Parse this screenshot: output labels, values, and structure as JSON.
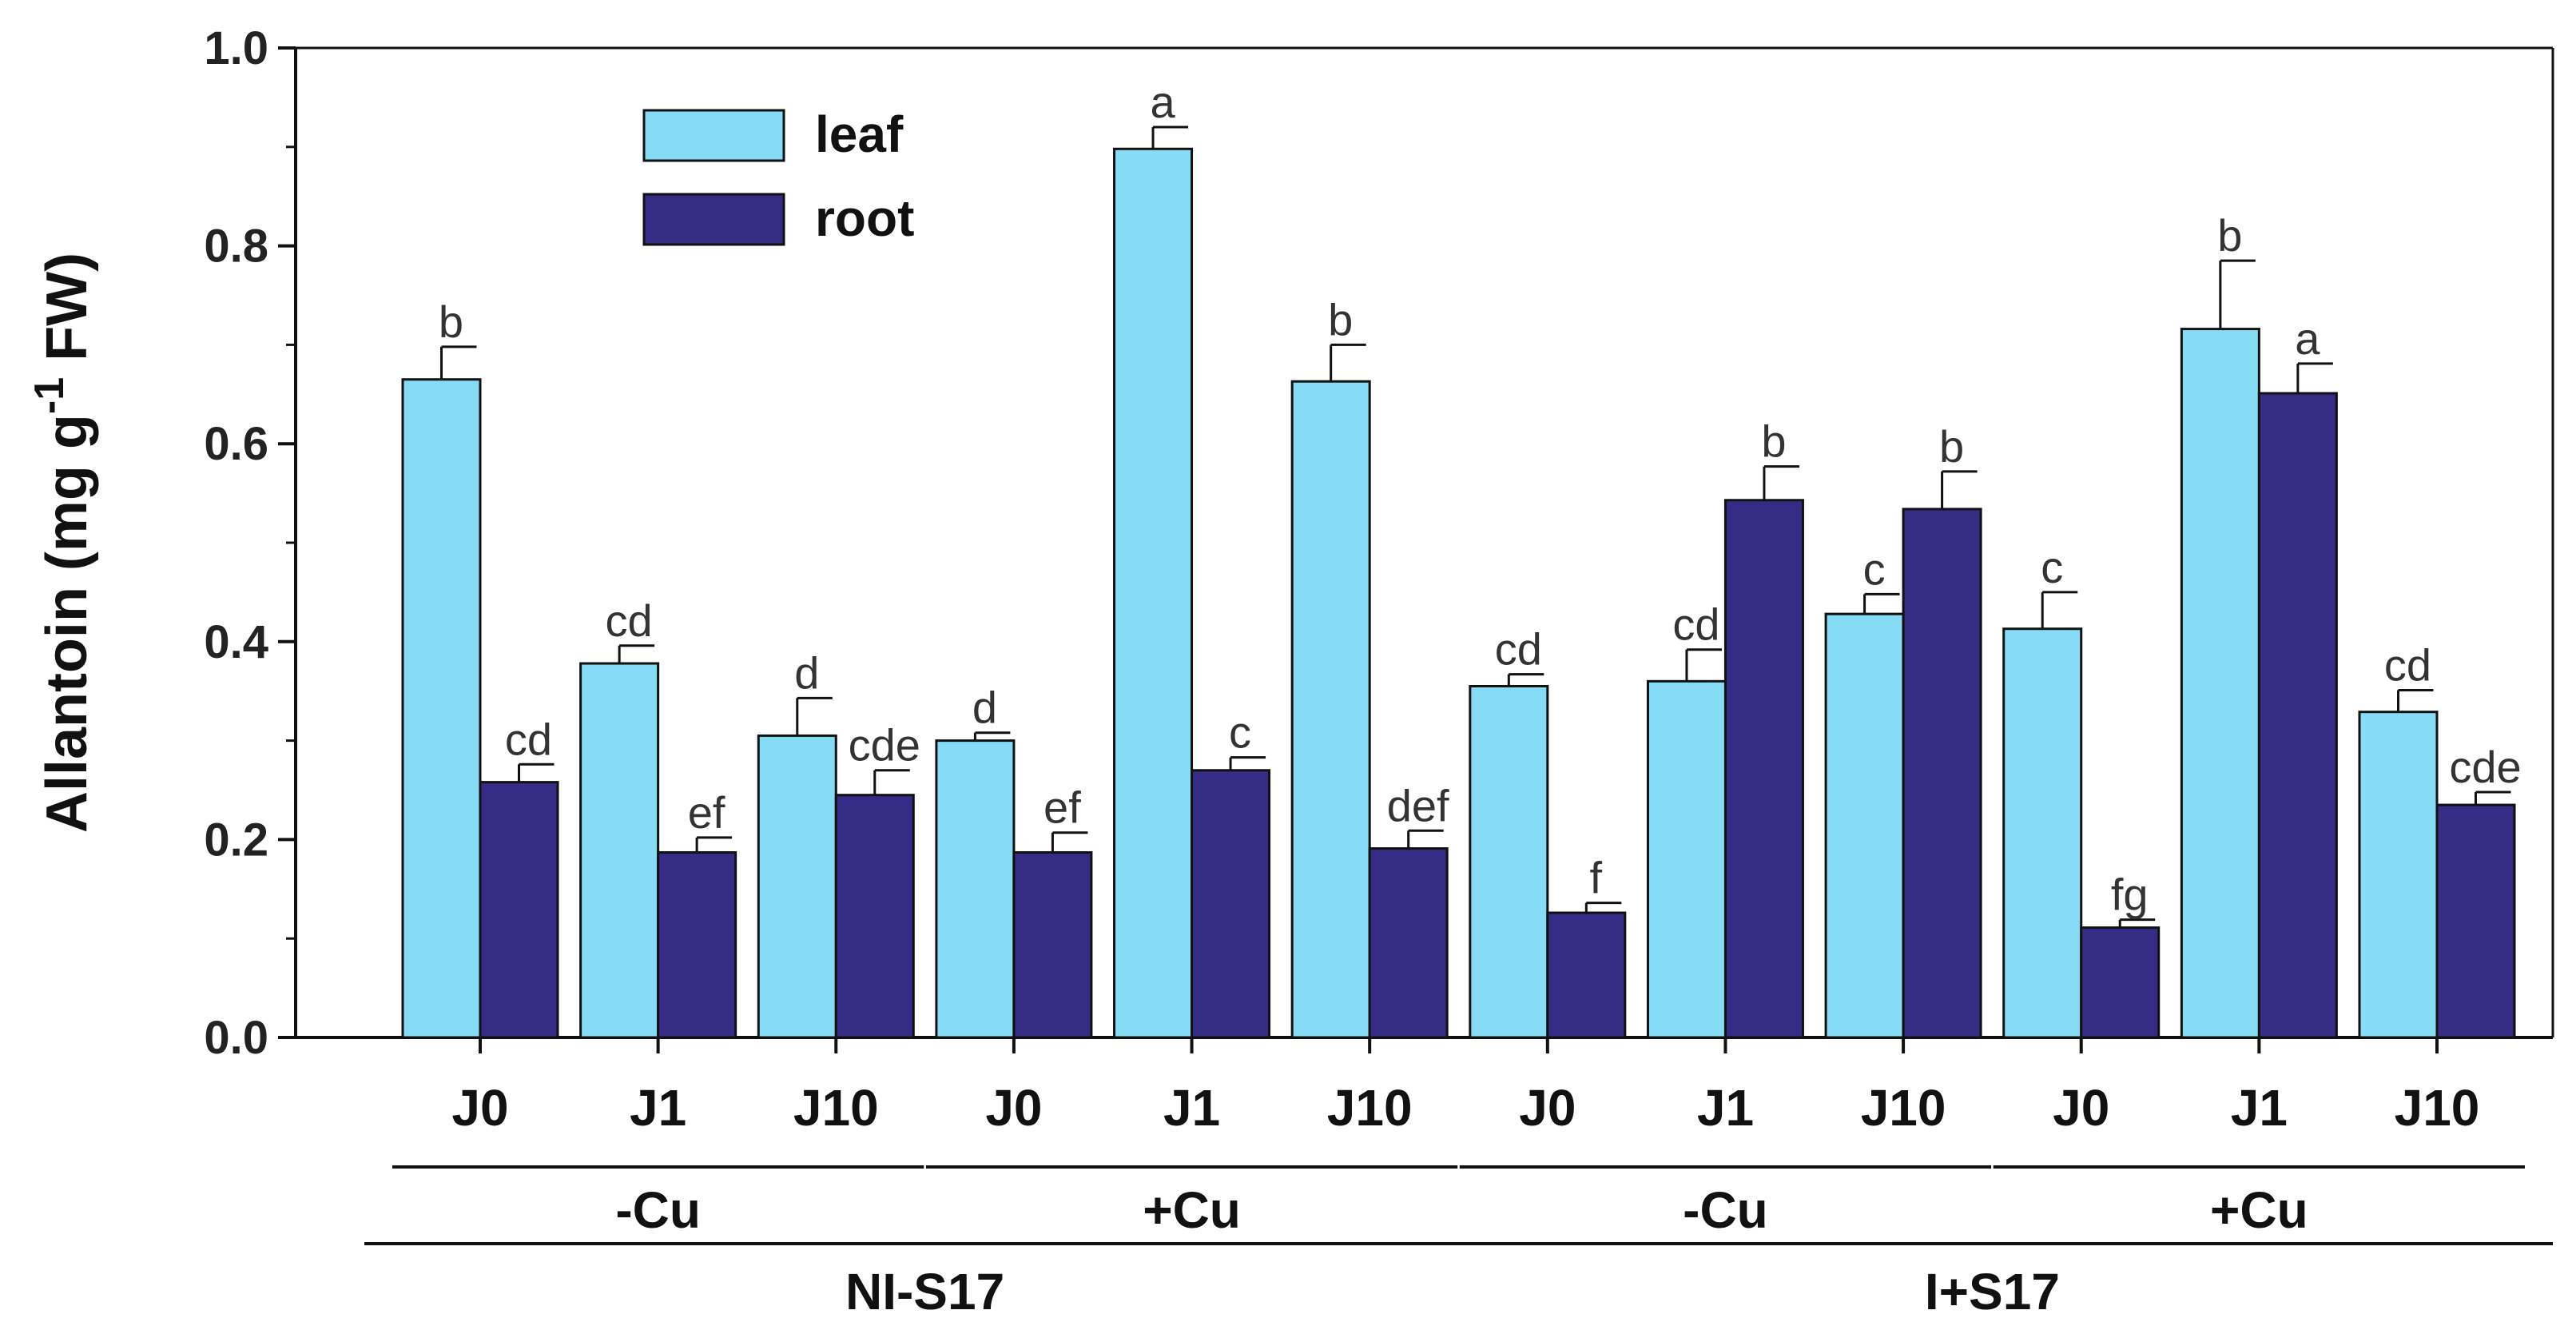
{
  "chart_data": {
    "type": "bar",
    "title": "",
    "xlabel": "",
    "ylabel": "Allantoin (mg g-1 FW)",
    "ylabel_parts": {
      "main": "Allantoin (mg g",
      "superscript": "-1",
      "suffix": " FW)"
    },
    "ylim": [
      0,
      1.0
    ],
    "yticks": [
      0.0,
      0.2,
      0.4,
      0.6,
      0.8,
      1.0
    ],
    "ytick_labels": [
      "0.0",
      "0.2",
      "0.4",
      "0.6",
      "0.8",
      "1.0"
    ],
    "grid": false,
    "legend_position": "top-left",
    "categories": [
      "J0",
      "J1",
      "J10",
      "J0",
      "J1",
      "J10",
      "J0",
      "J1",
      "J10",
      "J0",
      "J1",
      "J10"
    ],
    "groups_level1": [
      {
        "label": "-Cu",
        "start": 0,
        "end": 2
      },
      {
        "label": "+Cu",
        "start": 3,
        "end": 5
      },
      {
        "label": "-Cu",
        "start": 6,
        "end": 8
      },
      {
        "label": "+Cu",
        "start": 9,
        "end": 11
      }
    ],
    "groups_level2": [
      {
        "label": "NI-S17",
        "start": 0,
        "end": 5
      },
      {
        "label": "I+S17",
        "start": 6,
        "end": 11
      }
    ],
    "series": [
      {
        "name": "leaf",
        "color": "#87dcf5",
        "values": [
          0.665,
          0.378,
          0.305,
          0.3,
          0.898,
          0.663,
          0.355,
          0.36,
          0.428,
          0.413,
          0.716,
          0.329
        ],
        "errors": [
          0.033,
          0.018,
          0.038,
          0.008,
          0.022,
          0.037,
          0.012,
          0.032,
          0.02,
          0.037,
          0.069,
          0.022
        ],
        "letters": [
          "b",
          "cd",
          "d",
          "d",
          "a",
          "b",
          "cd",
          "cd",
          "c",
          "c",
          "b",
          "cd"
        ]
      },
      {
        "name": "root",
        "color": "#352d85",
        "values": [
          0.258,
          0.187,
          0.245,
          0.187,
          0.27,
          0.191,
          0.126,
          0.543,
          0.534,
          0.111,
          0.651,
          0.235
        ],
        "errors": [
          0.018,
          0.015,
          0.025,
          0.02,
          0.013,
          0.018,
          0.01,
          0.034,
          0.038,
          0.008,
          0.03,
          0.013
        ],
        "letters": [
          "cd",
          "ef",
          "cde",
          "ef",
          "c",
          "def",
          "f",
          "b",
          "b",
          "fg",
          "a",
          "cde"
        ]
      }
    ]
  }
}
